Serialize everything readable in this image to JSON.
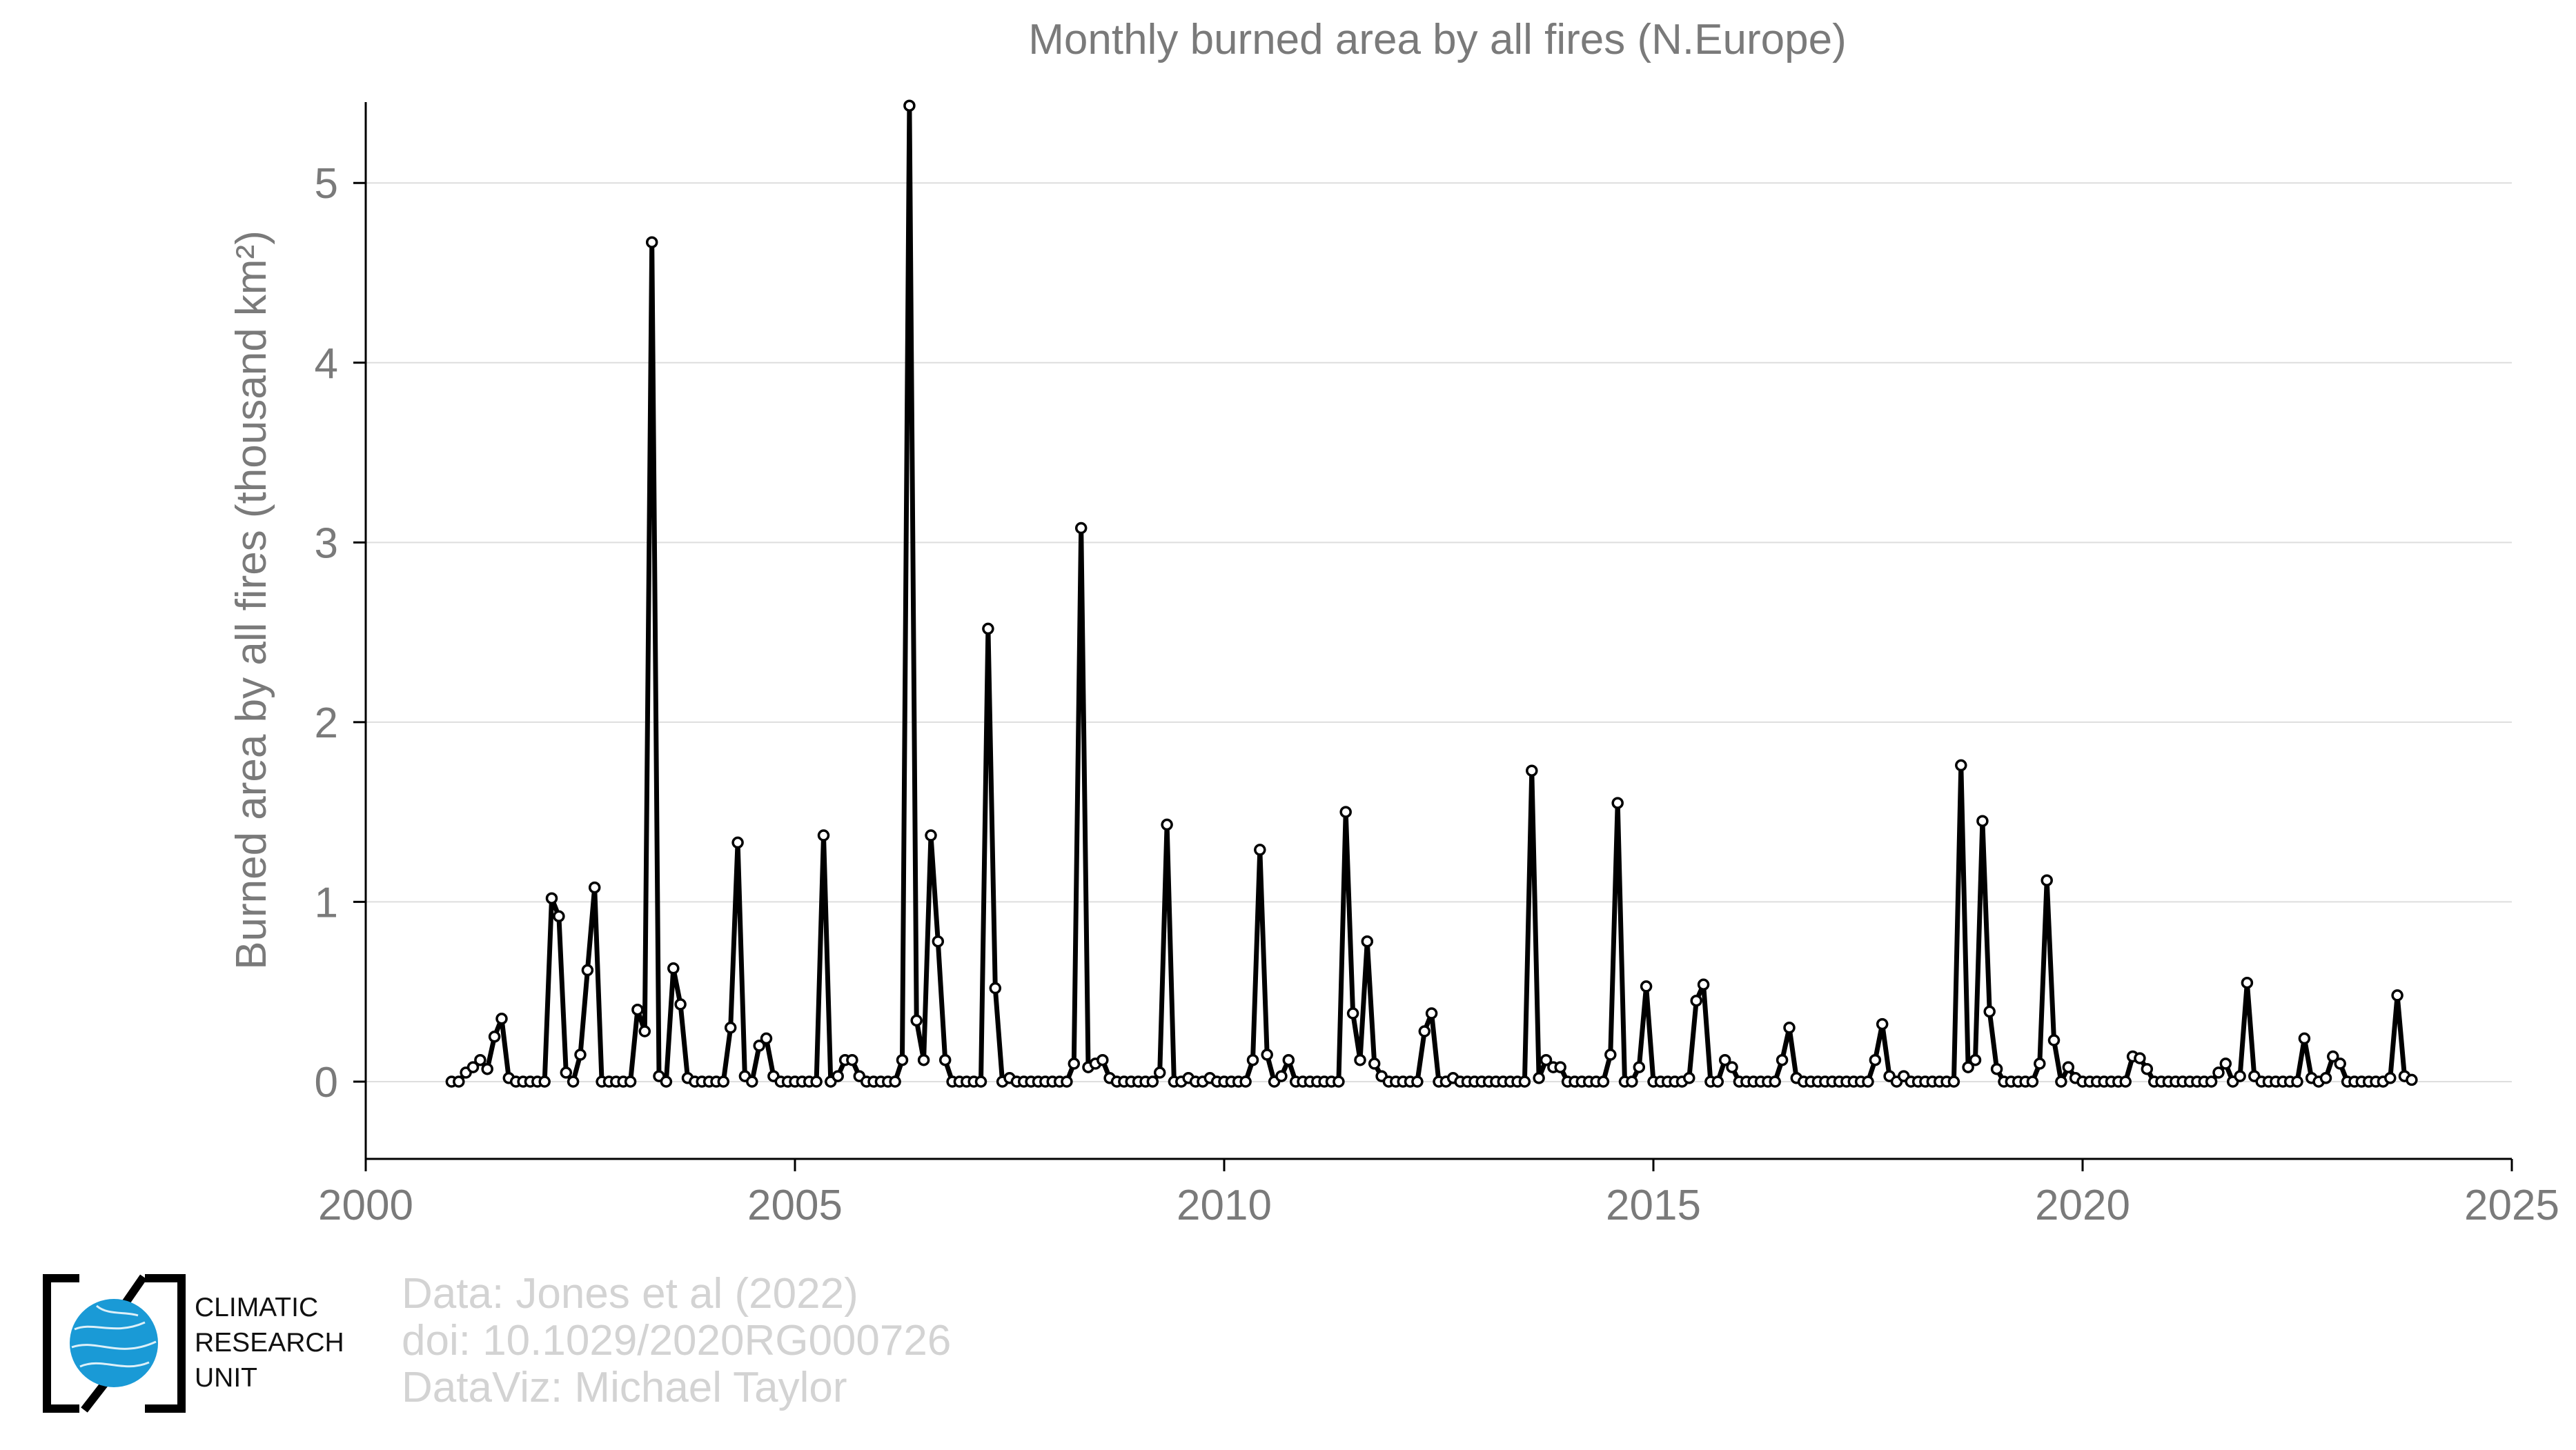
{
  "chart_data": {
    "type": "line",
    "title": "Monthly burned area by all fires (N.Europe)",
    "xlabel": "",
    "ylabel": "Burned area by all fires (thousand km²)",
    "xlim": [
      2000,
      2025
    ],
    "ylim": [
      -0.43,
      5.45
    ],
    "x_ticks": [
      2000,
      2005,
      2010,
      2015,
      2020,
      2025
    ],
    "y_ticks": [
      0,
      1,
      2,
      3,
      4,
      5
    ],
    "grid": "horizontal",
    "start": "2001-01",
    "frequency": "monthly",
    "series": [
      {
        "name": "Monthly burned area",
        "color": "#000000",
        "values": [
          0.0,
          0.0,
          0.05,
          0.08,
          0.12,
          0.07,
          0.25,
          0.35,
          0.02,
          0.0,
          0.0,
          0.0,
          0.0,
          0.0,
          1.02,
          0.92,
          0.05,
          0.0,
          0.15,
          0.62,
          1.08,
          0.0,
          0.0,
          0.0,
          0.0,
          0.0,
          0.4,
          0.28,
          4.67,
          0.03,
          0.0,
          0.63,
          0.43,
          0.02,
          0.0,
          0.0,
          0.0,
          0.0,
          0.0,
          0.3,
          1.33,
          0.03,
          0.0,
          0.2,
          0.24,
          0.03,
          0.0,
          0.0,
          0.0,
          0.0,
          0.0,
          0.0,
          1.37,
          0.0,
          0.03,
          0.12,
          0.12,
          0.03,
          0.0,
          0.0,
          0.0,
          0.0,
          0.0,
          0.12,
          5.43,
          0.34,
          0.12,
          1.37,
          0.78,
          0.12,
          0.0,
          0.0,
          0.0,
          0.0,
          0.0,
          2.52,
          0.52,
          0.0,
          0.02,
          0.0,
          0.0,
          0.0,
          0.0,
          0.0,
          0.0,
          0.0,
          0.0,
          0.1,
          3.08,
          0.08,
          0.1,
          0.12,
          0.02,
          0.0,
          0.0,
          0.0,
          0.0,
          0.0,
          0.0,
          0.05,
          1.43,
          0.0,
          0.0,
          0.02,
          0.0,
          0.0,
          0.02,
          0.0,
          0.0,
          0.0,
          0.0,
          0.0,
          0.12,
          1.29,
          0.15,
          0.0,
          0.03,
          0.12,
          0.0,
          0.0,
          0.0,
          0.0,
          0.0,
          0.0,
          0.0,
          1.5,
          0.38,
          0.12,
          0.78,
          0.1,
          0.03,
          0.0,
          0.0,
          0.0,
          0.0,
          0.0,
          0.28,
          0.38,
          0.0,
          0.0,
          0.02,
          0.0,
          0.0,
          0.0,
          0.0,
          0.0,
          0.0,
          0.0,
          0.0,
          0.0,
          0.0,
          1.73,
          0.02,
          0.12,
          0.08,
          0.08,
          0.0,
          0.0,
          0.0,
          0.0,
          0.0,
          0.0,
          0.15,
          1.55,
          0.0,
          0.0,
          0.08,
          0.53,
          0.0,
          0.0,
          0.0,
          0.0,
          0.0,
          0.02,
          0.45,
          0.54,
          0.0,
          0.0,
          0.12,
          0.08,
          0.0,
          0.0,
          0.0,
          0.0,
          0.0,
          0.0,
          0.12,
          0.3,
          0.02,
          0.0,
          0.0,
          0.0,
          0.0,
          0.0,
          0.0,
          0.0,
          0.0,
          0.0,
          0.0,
          0.12,
          0.32,
          0.03,
          0.0,
          0.03,
          0.0,
          0.0,
          0.0,
          0.0,
          0.0,
          0.0,
          0.0,
          1.76,
          0.08,
          0.12,
          1.45,
          0.39,
          0.07,
          0.0,
          0.0,
          0.0,
          0.0,
          0.0,
          0.1,
          1.12,
          0.23,
          0.0,
          0.08,
          0.02,
          0.0,
          0.0,
          0.0,
          0.0,
          0.0,
          0.0,
          0.0,
          0.14,
          0.13,
          0.07,
          0.0,
          0.0,
          0.0,
          0.0,
          0.0,
          0.0,
          0.0,
          0.0,
          0.0,
          0.05,
          0.1,
          0.0,
          0.03,
          0.55,
          0.03,
          0.0,
          0.0,
          0.0,
          0.0,
          0.0,
          0.0,
          0.24,
          0.02,
          0.0,
          0.02,
          0.14,
          0.1,
          0.0,
          0.0,
          0.0,
          0.0,
          0.0,
          0.0,
          0.02,
          0.48,
          0.03,
          0.01
        ]
      }
    ]
  },
  "credits": {
    "line1": "Data: Jones et al (2022)",
    "line2": "doi: 10.1029/2020RG000726",
    "line3": "DataViz: Michael Taylor"
  },
  "logo": {
    "line1": "CLIMATIC",
    "line2": "RESEARCH",
    "line3": "UNIT",
    "accent": "#1a9ad6"
  }
}
